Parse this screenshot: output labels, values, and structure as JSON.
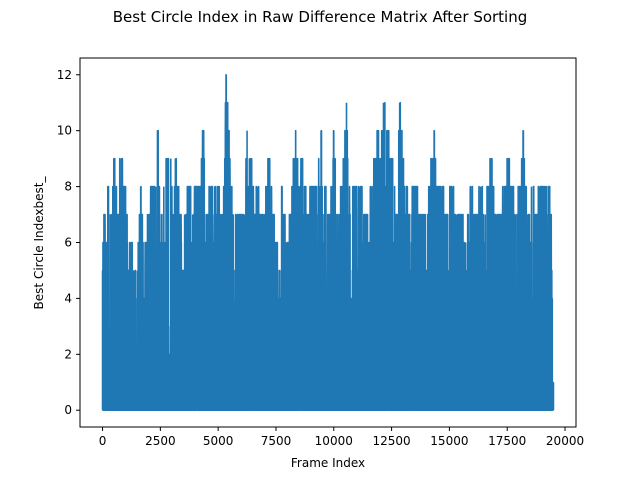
{
  "chart_data": {
    "type": "line",
    "title": "Best Circle Index in Raw Difference Matrix After Sorting",
    "xlabel": "Frame Index",
    "ylabel": "Best Circle Indexbest_",
    "xlim": [
      -975,
      20475
    ],
    "ylim": [
      -0.6,
      12.6
    ],
    "grid": false,
    "legend": "none",
    "x_ticks": [
      0,
      2500,
      5000,
      7500,
      10000,
      12500,
      15000,
      17500,
      20000
    ],
    "x_tick_labels": [
      "0",
      "2500",
      "5000",
      "7500",
      "10000",
      "12500",
      "15000",
      "17500",
      "20000"
    ],
    "y_ticks": [
      0,
      2,
      4,
      6,
      8,
      10,
      12
    ],
    "y_tick_labels": [
      "0",
      "2",
      "4",
      "6",
      "8",
      "10",
      "12"
    ],
    "line_color": "#1f77b4",
    "series": [
      {
        "x_range": [
          0,
          19500
        ],
        "min": 0,
        "max": 12,
        "envelope": [
          [
            0,
            5
          ],
          [
            70,
            7
          ],
          [
            150,
            6
          ],
          [
            250,
            8
          ],
          [
            350,
            7
          ],
          [
            450,
            8
          ],
          [
            500,
            9
          ],
          [
            600,
            8
          ],
          [
            700,
            7
          ],
          [
            750,
            9
          ],
          [
            850,
            9
          ],
          [
            950,
            8
          ],
          [
            1050,
            7
          ],
          [
            1100,
            5
          ],
          [
            1250,
            6
          ],
          [
            1350,
            5
          ],
          [
            1500,
            5
          ],
          [
            1650,
            8
          ],
          [
            1750,
            6
          ],
          [
            1850,
            6
          ],
          [
            2000,
            7
          ],
          [
            2150,
            8
          ],
          [
            2300,
            8
          ],
          [
            2400,
            10
          ],
          [
            2500,
            6
          ],
          [
            2650,
            8
          ],
          [
            2800,
            9
          ],
          [
            2950,
            9
          ],
          [
            3050,
            6
          ],
          [
            3150,
            9
          ],
          [
            3350,
            7
          ],
          [
            3550,
            7
          ],
          [
            3750,
            8
          ],
          [
            3900,
            7
          ],
          [
            4050,
            8
          ],
          [
            4250,
            8
          ],
          [
            4350,
            10
          ],
          [
            4500,
            7
          ],
          [
            4650,
            8
          ],
          [
            4850,
            8
          ],
          [
            5000,
            8
          ],
          [
            5150,
            7
          ],
          [
            5250,
            8
          ],
          [
            5350,
            12
          ],
          [
            5500,
            9
          ],
          [
            5650,
            7
          ],
          [
            5800,
            7
          ],
          [
            5950,
            7
          ],
          [
            6150,
            7
          ],
          [
            6250,
            10
          ],
          [
            6350,
            9
          ],
          [
            6450,
            9
          ],
          [
            6550,
            7
          ],
          [
            6700,
            8
          ],
          [
            6850,
            7
          ],
          [
            7000,
            7
          ],
          [
            7200,
            9
          ],
          [
            7350,
            7
          ],
          [
            7550,
            6
          ],
          [
            7750,
            8
          ],
          [
            7950,
            6
          ],
          [
            8150,
            7
          ],
          [
            8350,
            10
          ],
          [
            8500,
            8
          ],
          [
            8650,
            9
          ],
          [
            8850,
            7
          ],
          [
            9050,
            8
          ],
          [
            9250,
            8
          ],
          [
            9450,
            10
          ],
          [
            9650,
            8
          ],
          [
            9800,
            7
          ],
          [
            10000,
            10
          ],
          [
            10150,
            7
          ],
          [
            10350,
            8
          ],
          [
            10550,
            11
          ],
          [
            10700,
            7
          ],
          [
            10900,
            8
          ],
          [
            11100,
            8
          ],
          [
            11350,
            7
          ],
          [
            11600,
            8
          ],
          [
            11800,
            9
          ],
          [
            11900,
            10
          ],
          [
            12000,
            9
          ],
          [
            12150,
            11
          ],
          [
            12300,
            10
          ],
          [
            12500,
            9
          ],
          [
            12700,
            7
          ],
          [
            12850,
            11
          ],
          [
            13000,
            9
          ],
          [
            13250,
            7
          ],
          [
            13500,
            8
          ],
          [
            13750,
            7
          ],
          [
            13950,
            7
          ],
          [
            14150,
            8
          ],
          [
            14350,
            10
          ],
          [
            14500,
            8
          ],
          [
            14700,
            8
          ],
          [
            14900,
            7
          ],
          [
            15100,
            8
          ],
          [
            15300,
            7
          ],
          [
            15500,
            7
          ],
          [
            15700,
            6
          ],
          [
            15900,
            8
          ],
          [
            16100,
            7
          ],
          [
            16350,
            8
          ],
          [
            16550,
            7
          ],
          [
            16800,
            9
          ],
          [
            17000,
            7
          ],
          [
            17200,
            7
          ],
          [
            17400,
            8
          ],
          [
            17550,
            9
          ],
          [
            17700,
            8
          ],
          [
            17850,
            7
          ],
          [
            18050,
            8
          ],
          [
            18200,
            10
          ],
          [
            18350,
            7
          ],
          [
            18550,
            8
          ],
          [
            18750,
            7
          ],
          [
            18900,
            8
          ],
          [
            19100,
            8
          ],
          [
            19300,
            8
          ],
          [
            19400,
            7
          ],
          [
            19450,
            4
          ],
          [
            19500,
            1
          ]
        ]
      }
    ]
  }
}
